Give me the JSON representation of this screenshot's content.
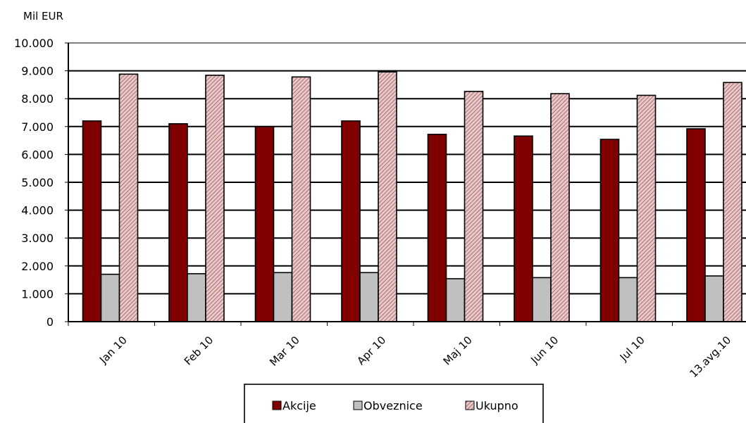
{
  "chart_data": {
    "type": "bar",
    "title": "",
    "unit_label": "Mil EUR",
    "xlabel": "",
    "ylabel": "",
    "ylim": [
      0,
      10000
    ],
    "yticks": [
      0,
      1000,
      2000,
      3000,
      4000,
      5000,
      6000,
      7000,
      8000,
      9000,
      10000
    ],
    "ytick_labels": [
      "0",
      "1.000",
      "2.000",
      "3.000",
      "4.000",
      "5.000",
      "6.000",
      "7.000",
      "8.000",
      "9.000",
      "10.000"
    ],
    "grid": true,
    "legend_position": "bottom-center",
    "categories": [
      "Jan 10",
      "Feb 10",
      "Mar 10",
      "Apr 10",
      "Maj 10",
      "Jun 10",
      "Jul 10",
      "13.avg.10"
    ],
    "series": [
      {
        "name": "Akcije",
        "color": "#800000",
        "pattern": "solid",
        "values": [
          7200,
          7100,
          7000,
          7200,
          6720,
          6660,
          6540,
          6920
        ]
      },
      {
        "name": "Obveznice",
        "color": "#c0c0c0",
        "pattern": "solid",
        "values": [
          1700,
          1720,
          1760,
          1760,
          1540,
          1580,
          1580,
          1640
        ]
      },
      {
        "name": "Ukupno",
        "color": "#d9a0a0",
        "pattern": "hatched",
        "values": [
          8880,
          8840,
          8780,
          8960,
          8260,
          8180,
          8120,
          8580
        ]
      }
    ]
  }
}
